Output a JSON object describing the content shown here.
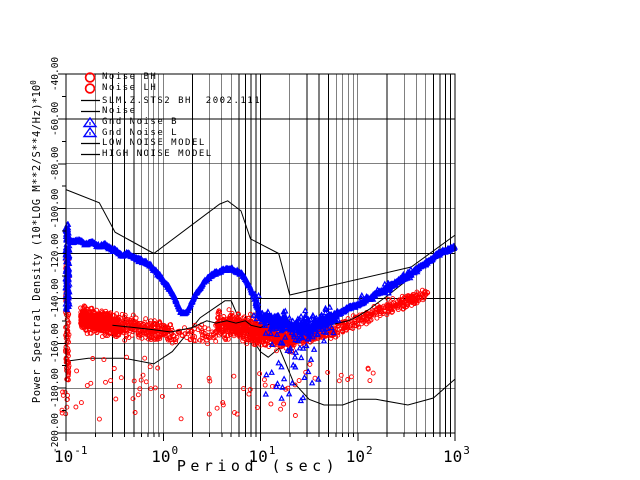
{
  "window": {
    "background": "#ffffff"
  },
  "legend": {
    "items": [
      {
        "marker": "circle",
        "color": "#ff0000",
        "label": "Noise BH"
      },
      {
        "marker": "circle",
        "color": "#ff0000",
        "label": "Noise LH"
      },
      {
        "marker": "line",
        "color": "#000000",
        "label": "SLM.Z.STS2 BH  2002.111"
      },
      {
        "marker": "line",
        "color": "#000000",
        "label": "Noise"
      },
      {
        "marker": "triangle",
        "color": "#0000ff",
        "label": "Gnd Noise B"
      },
      {
        "marker": "triangle",
        "color": "#0000ff",
        "label": "Gnd Noise L"
      },
      {
        "marker": "line",
        "color": "#000000",
        "label": "LOW NOISE MODEL"
      },
      {
        "marker": "line",
        "color": "#000000",
        "label": "HIGH NOISE MODEL"
      }
    ]
  },
  "chart_data": {
    "type": "scatter",
    "title": "SLM.Z.STS2 BH  2002.111",
    "xlabel": "Period (sec)",
    "ylabel": "Power Spectral Density (10*LOG M**2/S**4/Hz)",
    "y_scale": {
      "prefix": "*10",
      "exponent": "0"
    },
    "colors": {
      "noise": "#ff0000",
      "gnd_noise": "#0000ff",
      "model": "#000000",
      "grid": "#000000"
    },
    "axes": {
      "x": {
        "scale": "log",
        "min": 0.1,
        "max": 1000,
        "decades": [
          -1,
          0,
          1,
          2,
          3
        ],
        "tick_labels": [
          {
            "base": "10",
            "exp": "-1"
          },
          {
            "base": "10",
            "exp": "0"
          },
          {
            "base": "10",
            "exp": "1"
          },
          {
            "base": "10",
            "exp": "2"
          },
          {
            "base": "10",
            "exp": "3"
          }
        ]
      },
      "y": {
        "scale": "linear",
        "min": -200,
        "max": -40,
        "step": 20,
        "minor_step": 10,
        "tick_labels": [
          "-40.00",
          "-60.00",
          "-80.00",
          "-100.00",
          "-120.00",
          "-140.00",
          "-160.00",
          "-180.00",
          "-200.00"
        ]
      }
    },
    "models": [
      {
        "name": "HIGH NOISE MODEL",
        "z": "back",
        "points": [
          [
            0.1,
            -91.5
          ],
          [
            0.22,
            -97.4
          ],
          [
            0.32,
            -110.5
          ],
          [
            0.8,
            -120.0
          ],
          [
            3.8,
            -98.0
          ],
          [
            4.6,
            -96.5
          ],
          [
            6.3,
            -101.0
          ],
          [
            7.9,
            -113.5
          ],
          [
            15.4,
            -120.0
          ],
          [
            20.0,
            -138.5
          ],
          [
            354.8,
            -126.0
          ],
          [
            1000,
            -111.8
          ]
        ]
      },
      {
        "name": "LOW NOISE MODEL",
        "z": "back",
        "points": [
          [
            0.1,
            -168.0
          ],
          [
            0.17,
            -166.7
          ],
          [
            0.4,
            -166.7
          ],
          [
            0.8,
            -169.2
          ],
          [
            1.24,
            -163.7
          ],
          [
            2.4,
            -148.6
          ],
          [
            4.3,
            -141.1
          ],
          [
            5.0,
            -141.1
          ],
          [
            6.0,
            -149.0
          ],
          [
            10.0,
            -163.8
          ],
          [
            12.0,
            -166.2
          ],
          [
            15.6,
            -162.1
          ],
          [
            21.9,
            -177.5
          ],
          [
            31.6,
            -185.0
          ],
          [
            45.0,
            -187.5
          ],
          [
            70.0,
            -187.5
          ],
          [
            101.0,
            -185.0
          ],
          [
            154.0,
            -185.0
          ],
          [
            328.0,
            -187.5
          ],
          [
            600.0,
            -184.4
          ],
          [
            1000,
            -176.0
          ]
        ]
      },
      {
        "name": "SLM.Z.STS2 BH observed",
        "z": "mid",
        "points": [
          [
            0.3,
            -152
          ],
          [
            0.5,
            -153
          ],
          [
            0.8,
            -154
          ],
          [
            1.2,
            -155
          ],
          [
            2,
            -153
          ],
          [
            2.8,
            -150
          ],
          [
            3.5,
            -151
          ],
          [
            4.5,
            -150
          ],
          [
            5.6,
            -151
          ],
          [
            7,
            -150
          ],
          [
            8,
            -152
          ],
          [
            10,
            -153
          ],
          [
            13,
            -151
          ],
          [
            16,
            -153
          ],
          [
            20,
            -152
          ],
          [
            26,
            -154
          ],
          [
            32,
            -152
          ],
          [
            40,
            -153
          ],
          [
            50,
            -152
          ],
          [
            63,
            -151
          ],
          [
            80,
            -150
          ],
          [
            100,
            -148
          ],
          [
            130,
            -145
          ],
          [
            160,
            -142
          ],
          [
            200,
            -139
          ],
          [
            260,
            -135
          ],
          [
            320,
            -132
          ],
          [
            400,
            -128
          ],
          [
            500,
            -125
          ],
          [
            650,
            -121
          ],
          [
            800,
            -119
          ],
          [
            1000,
            -117
          ]
        ]
      }
    ],
    "blue_band": {
      "marker": "triangle",
      "color": "#0000ff",
      "step": 0.0035,
      "jitter": 1.1,
      "center": [
        [
          -1.0,
          -113
        ],
        [
          -0.93,
          -115
        ],
        [
          -0.86,
          -114
        ],
        [
          -0.8,
          -116
        ],
        [
          -0.73,
          -115
        ],
        [
          -0.66,
          -117
        ],
        [
          -0.6,
          -116
        ],
        [
          -0.54,
          -118
        ],
        [
          -0.48,
          -119
        ],
        [
          -0.42,
          -121
        ],
        [
          -0.36,
          -120
        ],
        [
          -0.3,
          -122
        ],
        [
          -0.24,
          -123
        ],
        [
          -0.18,
          -124
        ],
        [
          -0.12,
          -126
        ],
        [
          -0.06,
          -129
        ],
        [
          0.0,
          -132
        ],
        [
          0.05,
          -135
        ],
        [
          0.1,
          -138
        ],
        [
          0.14,
          -142
        ],
        [
          0.18,
          -146
        ],
        [
          0.22,
          -147
        ],
        [
          0.26,
          -145
        ],
        [
          0.3,
          -141
        ],
        [
          0.35,
          -137
        ],
        [
          0.4,
          -134
        ],
        [
          0.46,
          -131
        ],
        [
          0.52,
          -129
        ],
        [
          0.58,
          -128
        ],
        [
          0.64,
          -127
        ],
        [
          0.7,
          -127
        ],
        [
          0.76,
          -128
        ],
        [
          0.8,
          -129
        ],
        [
          0.84,
          -131
        ],
        [
          0.88,
          -134
        ],
        [
          0.92,
          -138
        ],
        [
          0.96,
          -143
        ],
        [
          1.0,
          -147
        ],
        [
          1.04,
          -150
        ],
        [
          1.08,
          -148
        ],
        [
          1.12,
          -151
        ],
        [
          1.16,
          -149
        ],
        [
          1.2,
          -152
        ],
        [
          1.25,
          -150
        ],
        [
          1.3,
          -153
        ],
        [
          1.35,
          -151
        ],
        [
          1.4,
          -154
        ],
        [
          1.45,
          -152
        ],
        [
          1.5,
          -154
        ],
        [
          1.55,
          -152
        ],
        [
          1.6,
          -151
        ],
        [
          1.68,
          -150
        ],
        [
          1.76,
          -148
        ],
        [
          1.84,
          -146
        ],
        [
          1.92,
          -144
        ],
        [
          2.0,
          -143
        ],
        [
          2.08,
          -141
        ],
        [
          2.16,
          -139
        ],
        [
          2.24,
          -137
        ],
        [
          2.32,
          -135
        ],
        [
          2.4,
          -133
        ],
        [
          2.48,
          -131
        ],
        [
          2.56,
          -129
        ],
        [
          2.64,
          -126
        ],
        [
          2.72,
          -124
        ],
        [
          2.8,
          -121
        ],
        [
          2.88,
          -119
        ],
        [
          2.95,
          -118
        ],
        [
          3.0,
          -117
        ]
      ],
      "rough": {
        "logp": [
          0.93,
          1.8
        ],
        "extra_jitter": 3.2,
        "drop_chance": 0.1,
        "drop_depth": 12
      },
      "streak": {
        "x": [
          65.5,
          69.5
        ],
        "dB": [
          -107,
          -146
        ],
        "count": 140
      },
      "scatter": [
        {
          "logp": [
            0.95,
            1.75
          ],
          "count": 130,
          "spread": 9
        },
        {
          "logp": [
            1.05,
            1.6
          ],
          "count": 30,
          "below": [
            8,
            34
          ]
        },
        {
          "logp": [
            2.0,
            2.65
          ],
          "count": 40,
          "spread": 4
        }
      ]
    },
    "red_cloud": {
      "marker": "circle",
      "color": "#ff0000",
      "radius": 2.0,
      "clusters": [
        {
          "logp": [
            -0.85,
            -0.45
          ],
          "count": 560,
          "spread": 7,
          "center": [
            [
              -0.85,
              -149
            ],
            [
              -0.65,
              -151
            ],
            [
              -0.45,
              -152
            ]
          ]
        },
        {
          "logp": [
            -0.45,
            0.1
          ],
          "count": 240,
          "spread": 7,
          "center": [
            [
              -0.45,
              -152
            ],
            [
              -0.1,
              -154
            ],
            [
              0.1,
              -155
            ]
          ]
        },
        {
          "logp": [
            0.1,
            0.55
          ],
          "count": 60,
          "spread": 6,
          "center": [
            [
              0.1,
              -156
            ],
            [
              0.55,
              -156
            ]
          ]
        },
        {
          "logp": [
            0.55,
            1.35
          ],
          "count": 700,
          "spread": 8,
          "center": [
            [
              0.55,
              -151
            ],
            [
              0.8,
              -153
            ],
            [
              1.0,
              -155
            ],
            [
              1.2,
              -157
            ],
            [
              1.35,
              -158
            ]
          ]
        },
        {
          "logp": [
            1.35,
            2.72
          ],
          "count": 380,
          "spread": 4.5,
          "center": [
            [
              1.35,
              -158
            ],
            [
              1.6,
              -156
            ],
            [
              1.8,
              -154
            ],
            [
              2.0,
              -150
            ],
            [
              2.2,
              -146
            ],
            [
              2.45,
              -142
            ],
            [
              2.72,
              -138
            ]
          ]
        },
        {
          "logp": [
            -0.9,
            0.2
          ],
          "count": 30,
          "spread": 14,
          "uniform": true,
          "center": [
            [
              -0.9,
              -180
            ],
            [
              0.2,
              -180
            ]
          ]
        },
        {
          "logp": [
            0.45,
            1.5
          ],
          "count": 26,
          "spread": 11,
          "uniform": true,
          "center": [
            [
              0.45,
              -182
            ],
            [
              1.5,
              -182
            ]
          ]
        },
        {
          "logp": [
            1.4,
            2.3
          ],
          "count": 12,
          "spread": 6,
          "uniform": true,
          "center": [
            [
              1.4,
              -172
            ],
            [
              2.3,
              -172
            ]
          ]
        }
      ],
      "streaks": [
        {
          "x": [
            65.5,
            69
          ],
          "dB": [
            -120,
            -177
          ],
          "count": 95
        },
        {
          "x": [
            62,
            68
          ],
          "dB": [
            -177,
            -193
          ],
          "count": 10
        }
      ]
    }
  }
}
